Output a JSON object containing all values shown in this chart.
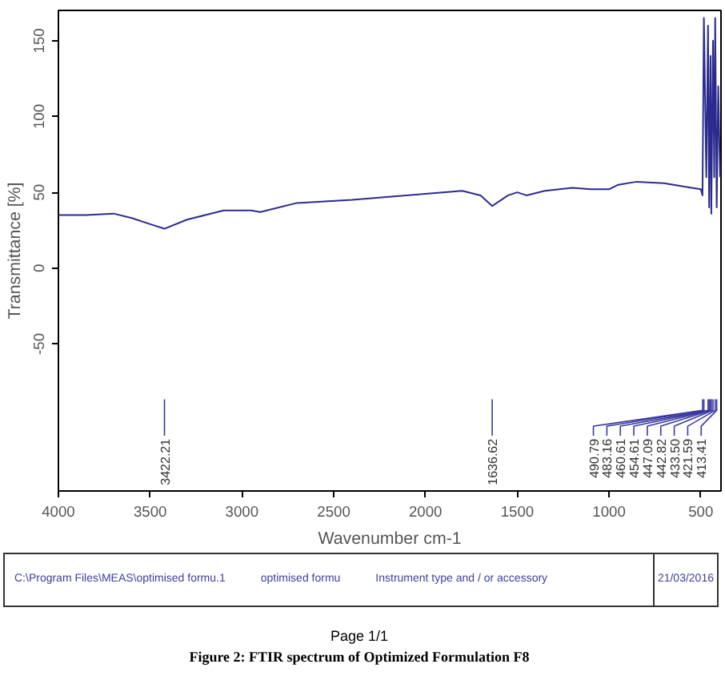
{
  "chart_data": {
    "type": "line",
    "xlabel": "Wavenumber cm-1",
    "ylabel": "Transmittance [%]",
    "xlim": [
      4000,
      390
    ],
    "ylim": [
      -147,
      170
    ],
    "xticks": [
      4000,
      3500,
      3000,
      2500,
      2000,
      1500,
      1000,
      500
    ],
    "yticks": [
      150,
      100,
      50,
      0,
      -50
    ],
    "grid": false,
    "series": [
      {
        "color": "#2b2b8f",
        "x": [
          4000,
          3850,
          3700,
          3600,
          3500,
          3422.21,
          3300,
          3200,
          3100,
          2950,
          2900,
          2700,
          2400,
          2200,
          2000,
          1800,
          1700,
          1636.62,
          1550,
          1500,
          1450,
          1350,
          1200,
          1100,
          1000,
          950,
          850,
          700,
          550,
          500,
          490.79,
          483.16,
          470,
          460.61,
          454.61,
          447.09,
          442.82,
          433.5,
          427,
          421.59,
          413.41,
          405,
          395
        ],
        "values": [
          35,
          35,
          36,
          33,
          29,
          26,
          32,
          35,
          38,
          38,
          37,
          43,
          45,
          47,
          49,
          51,
          48,
          41,
          48,
          50,
          48,
          51,
          53,
          52,
          52,
          55,
          57,
          56,
          53,
          52,
          48,
          165,
          60,
          160,
          40,
          140,
          36,
          150,
          60,
          165,
          40,
          120,
          60
        ]
      }
    ],
    "annotations": [
      {
        "text": "3422.21",
        "x": 3422.21
      },
      {
        "text": "1636.62",
        "x": 1636.62
      },
      {
        "text": "490.79",
        "x": 490.79
      },
      {
        "text": "483.16",
        "x": 483.16
      },
      {
        "text": "460.61",
        "x": 460.61
      },
      {
        "text": "454.61",
        "x": 454.61
      },
      {
        "text": "447.09",
        "x": 447.09
      },
      {
        "text": "442.82",
        "x": 442.82
      },
      {
        "text": "433.50",
        "x": 433.5
      },
      {
        "text": "421.59",
        "x": 421.59
      },
      {
        "text": "413.41",
        "x": 413.41
      },
      "C:\\Program Files\\MEAS\\optimised formu.1",
      "optimised formu",
      "Instrument type and / or accessory",
      "21/03/2016",
      "Page 1/1",
      "Figure 2: FTIR spectrum of Optimized Formulation F8"
    ]
  }
}
